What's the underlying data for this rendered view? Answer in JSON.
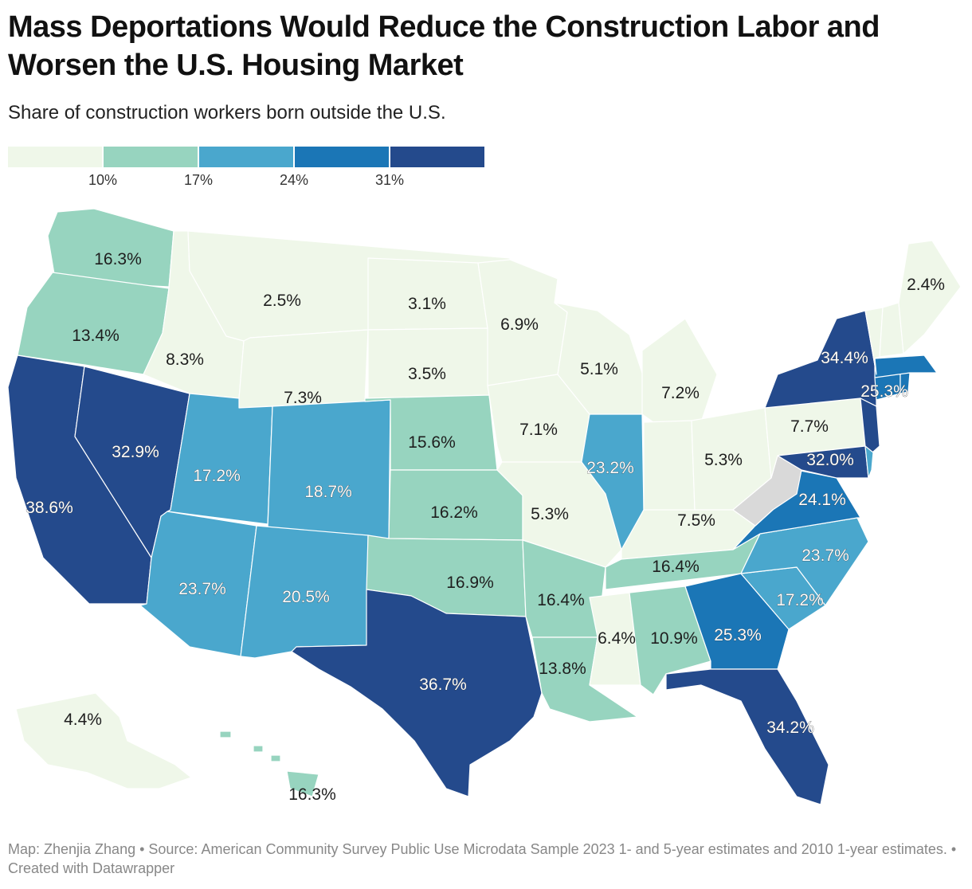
{
  "title": "Mass Deportations Would Reduce the Construction Labor and Worsen the U.S. Housing Market",
  "subtitle": "Share of construction workers born outside the U.S.",
  "legend": {
    "colors": [
      "#eff7e9",
      "#97d4bf",
      "#4aa7cd",
      "#1b76b6",
      "#244a8c"
    ],
    "ticks": [
      "10%",
      "17%",
      "24%",
      "31%"
    ]
  },
  "map_data": {
    "no_data_color": "#d9d9d9",
    "states": [
      {
        "abbr": "WA",
        "value": 16.3,
        "label": "16.3%"
      },
      {
        "abbr": "OR",
        "value": 13.4,
        "label": "13.4%"
      },
      {
        "abbr": "CA",
        "value": 38.6,
        "label": "38.6%"
      },
      {
        "abbr": "NV",
        "value": 32.9,
        "label": "32.9%"
      },
      {
        "abbr": "ID",
        "value": 8.3,
        "label": "8.3%"
      },
      {
        "abbr": "MT",
        "value": 2.5,
        "label": "2.5%"
      },
      {
        "abbr": "WY",
        "value": 7.3,
        "label": "7.3%"
      },
      {
        "abbr": "UT",
        "value": 17.2,
        "label": "17.2%"
      },
      {
        "abbr": "AZ",
        "value": 23.7,
        "label": "23.7%"
      },
      {
        "abbr": "CO",
        "value": 18.7,
        "label": "18.7%"
      },
      {
        "abbr": "NM",
        "value": 20.5,
        "label": "20.5%"
      },
      {
        "abbr": "ND",
        "value": 3.1,
        "label": "3.1%"
      },
      {
        "abbr": "SD",
        "value": 3.5,
        "label": "3.5%"
      },
      {
        "abbr": "NE",
        "value": 15.6,
        "label": "15.6%"
      },
      {
        "abbr": "KS",
        "value": 16.2,
        "label": "16.2%"
      },
      {
        "abbr": "OK",
        "value": 16.9,
        "label": "16.9%"
      },
      {
        "abbr": "TX",
        "value": 36.7,
        "label": "36.7%"
      },
      {
        "abbr": "MN",
        "value": 6.9,
        "label": "6.9%"
      },
      {
        "abbr": "IA",
        "value": 7.1,
        "label": "7.1%"
      },
      {
        "abbr": "MO",
        "value": 5.3,
        "label": "5.3%"
      },
      {
        "abbr": "AR",
        "value": 16.4,
        "label": "16.4%"
      },
      {
        "abbr": "LA",
        "value": 13.8,
        "label": "13.8%"
      },
      {
        "abbr": "WI",
        "value": 5.1,
        "label": "5.1%"
      },
      {
        "abbr": "IL",
        "value": 23.2,
        "label": "23.2%"
      },
      {
        "abbr": "MI",
        "value": 7.2,
        "label": "7.2%"
      },
      {
        "abbr": "IN",
        "value": 7.5,
        "label": "7.5%"
      },
      {
        "abbr": "OH",
        "value": 5.3,
        "label": "5.3%"
      },
      {
        "abbr": "KY",
        "value": 7.5,
        "label": ""
      },
      {
        "abbr": "TN",
        "value": 16.4,
        "label": "16.4%"
      },
      {
        "abbr": "MS",
        "value": 6.4,
        "label": "6.4%"
      },
      {
        "abbr": "AL",
        "value": 10.9,
        "label": "10.9%"
      },
      {
        "abbr": "GA",
        "value": 25.3,
        "label": "25.3%"
      },
      {
        "abbr": "FL",
        "value": 34.2,
        "label": "34.2%"
      },
      {
        "abbr": "SC",
        "value": 17.2,
        "label": "17.2%"
      },
      {
        "abbr": "NC",
        "value": 23.7,
        "label": "23.7%"
      },
      {
        "abbr": "VA",
        "value": 24.1,
        "label": "24.1%"
      },
      {
        "abbr": "WV",
        "value": null,
        "label": ""
      },
      {
        "abbr": "PA",
        "value": 7.7,
        "label": "7.7%"
      },
      {
        "abbr": "NY",
        "value": 34.4,
        "label": "34.4%"
      },
      {
        "abbr": "NJ",
        "value": 32.0,
        "label": "32.0%"
      },
      {
        "abbr": "MD",
        "value": 32.0,
        "label": ""
      },
      {
        "abbr": "DE",
        "value": 20.0,
        "label": ""
      },
      {
        "abbr": "CT",
        "value": 25.3,
        "label": ""
      },
      {
        "abbr": "RI",
        "value": 25.3,
        "label": ""
      },
      {
        "abbr": "MA",
        "value": 25.3,
        "label": "25.3%"
      },
      {
        "abbr": "VT",
        "value": 5.0,
        "label": ""
      },
      {
        "abbr": "NH",
        "value": 5.0,
        "label": ""
      },
      {
        "abbr": "ME",
        "value": 2.4,
        "label": "2.4%"
      },
      {
        "abbr": "AK",
        "value": 4.4,
        "label": "4.4%"
      },
      {
        "abbr": "HI",
        "value": 16.3,
        "label": "16.3%"
      }
    ]
  },
  "footer": "Map: Zhenjia Zhang • Source: American Community Survey Public Use Microdata Sample 2023 1- and 5-year estimates and 2010 1-year estimates. • Created with Datawrapper"
}
